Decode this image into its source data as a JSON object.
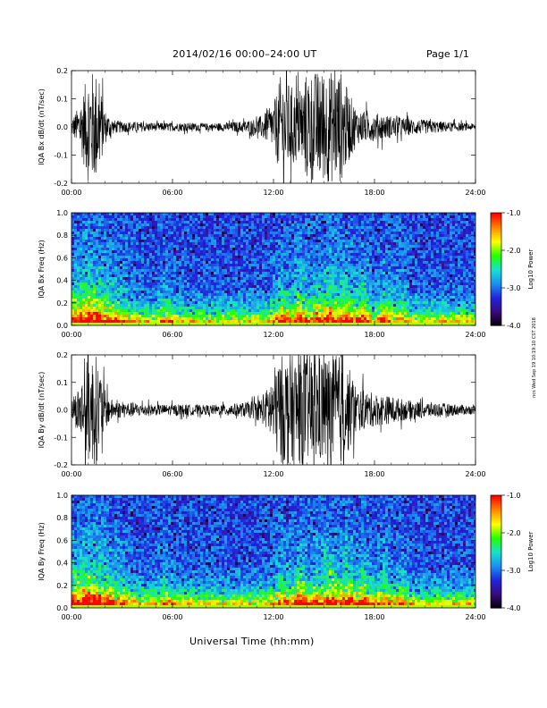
{
  "page": {
    "title": "2014/02/16  00:00–24:00 UT",
    "page_label": "Page 1/1",
    "xaxis_title": "Universal Time (hh:mm)",
    "stamp": "ncs Wed Sep 19 10:19:10 CST 2018"
  },
  "chart_data": [
    {
      "type": "line",
      "ylabel": "IQA Bx dB/dt (nT/sec)",
      "x_ticks": [
        "00:00",
        "06:00",
        "12:00",
        "18:00",
        "24:00"
      ],
      "xlim": [
        0,
        24
      ],
      "ylim": [
        -0.2,
        0.2
      ],
      "y_ticks": [
        "-0.2",
        "-0.1",
        "0.0",
        "0.1",
        "0.2"
      ],
      "series": [
        {
          "x": [
            0,
            0.5,
            1,
            1.5,
            2,
            2.5,
            3,
            4,
            5,
            6,
            7,
            8,
            9,
            10,
            11,
            11.5,
            12,
            12.5,
            13,
            13.5,
            14,
            14.5,
            15,
            15.5,
            16,
            16.5,
            17,
            18,
            19,
            20,
            21,
            22,
            23,
            24
          ],
          "amplitude": [
            0.03,
            0.08,
            0.2,
            0.2,
            0.06,
            0.025,
            0.02,
            0.018,
            0.015,
            0.015,
            0.015,
            0.013,
            0.015,
            0.02,
            0.03,
            0.05,
            0.08,
            0.2,
            0.15,
            0.12,
            0.2,
            0.2,
            0.2,
            0.2,
            0.2,
            0.12,
            0.06,
            0.05,
            0.04,
            0.03,
            0.025,
            0.02,
            0.015,
            0.012
          ]
        }
      ]
    },
    {
      "type": "heatmap",
      "ylabel": "IQA Bx Freq (Hz)",
      "colorbar_label": "Log10 Power",
      "colorbar_ticks": [
        "-1.0",
        "-2.0",
        "-3.0",
        "-4.0"
      ],
      "colorbar_range": [
        -4.0,
        -1.0
      ],
      "colorscale": [
        "#000000",
        "#3a0a7a",
        "#2222dd",
        "#1a8ff0",
        "#18e0d0",
        "#22ff00",
        "#ffff00",
        "#ff8800",
        "#ff0000"
      ],
      "x_ticks": [
        "00:00",
        "06:00",
        "12:00",
        "18:00",
        "24:00"
      ],
      "xlim": [
        0,
        24
      ],
      "ylim": [
        0.0,
        1.0
      ],
      "y_ticks": [
        "0.0",
        "0.2",
        "0.4",
        "0.6",
        "0.8",
        "1.0"
      ]
    },
    {
      "type": "line",
      "ylabel": "IQA By dB/dt (nT/sec)",
      "x_ticks": [
        "00:00",
        "06:00",
        "12:00",
        "18:00",
        "24:00"
      ],
      "xlim": [
        0,
        24
      ],
      "ylim": [
        -0.2,
        0.2
      ],
      "y_ticks": [
        "-0.2",
        "-0.1",
        "0.0",
        "0.1",
        "0.2"
      ],
      "series": [
        {
          "x": [
            0,
            0.5,
            1,
            1.5,
            2,
            2.5,
            3,
            4,
            5,
            6,
            7,
            8,
            9,
            10,
            11,
            11.5,
            12,
            12.5,
            13,
            13.5,
            14,
            14.5,
            15,
            15.5,
            16,
            16.5,
            17,
            18,
            19,
            20,
            21,
            22,
            23,
            24
          ],
          "amplitude": [
            0.03,
            0.1,
            0.2,
            0.2,
            0.07,
            0.03,
            0.03,
            0.025,
            0.02,
            0.02,
            0.02,
            0.018,
            0.02,
            0.025,
            0.035,
            0.06,
            0.15,
            0.2,
            0.2,
            0.2,
            0.2,
            0.2,
            0.2,
            0.2,
            0.2,
            0.15,
            0.08,
            0.06,
            0.05,
            0.035,
            0.03,
            0.025,
            0.02,
            0.015
          ]
        }
      ]
    },
    {
      "type": "heatmap",
      "ylabel": "IQA By Freq (Hz)",
      "colorbar_label": "Log10 Power",
      "colorbar_ticks": [
        "-1.0",
        "-2.0",
        "-3.0",
        "-4.0"
      ],
      "colorbar_range": [
        -4.0,
        -1.0
      ],
      "colorscale": [
        "#000000",
        "#3a0a7a",
        "#2222dd",
        "#1a8ff0",
        "#18e0d0",
        "#22ff00",
        "#ffff00",
        "#ff8800",
        "#ff0000"
      ],
      "x_ticks": [
        "00:00",
        "06:00",
        "12:00",
        "18:00",
        "24:00"
      ],
      "xlim": [
        0,
        24
      ],
      "ylim": [
        0.0,
        1.0
      ],
      "y_ticks": [
        "0.0",
        "0.2",
        "0.4",
        "0.6",
        "0.8",
        "1.0"
      ]
    }
  ]
}
